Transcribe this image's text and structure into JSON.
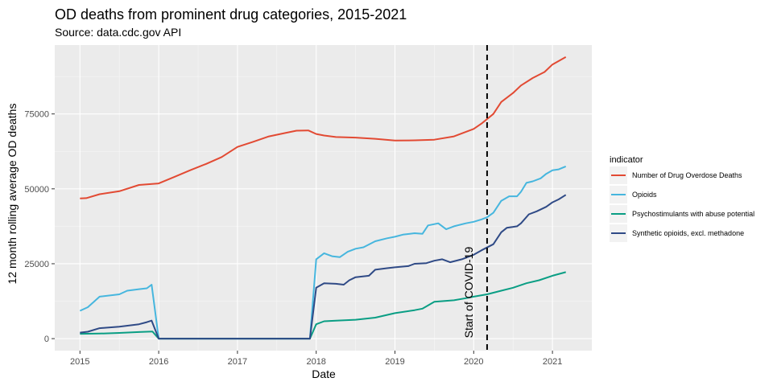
{
  "chart_data": {
    "type": "line",
    "title": "OD deaths from prominent drug categories, 2015-2021",
    "subtitle": "Source: data.cdc.gov API",
    "xlabel": "Date",
    "ylabel": "12 month rolling average OD deaths",
    "xlim": [
      2014.68,
      2021.5
    ],
    "ylim": [
      -4000,
      98000
    ],
    "x_ticks": [
      2015,
      2016,
      2017,
      2018,
      2019,
      2020,
      2021
    ],
    "x_tick_labels": [
      "2015",
      "2016",
      "2017",
      "2018",
      "2019",
      "2020",
      "2021"
    ],
    "y_ticks": [
      0,
      25000,
      50000,
      75000
    ],
    "y_tick_labels": [
      "0",
      "25000",
      "50000",
      "75000"
    ],
    "grid": true,
    "legend_title": "indicator",
    "legend_position": "right",
    "annotation": {
      "text": "Start of COVID-19",
      "x": 2020.17
    },
    "series": [
      {
        "name": "Number of Drug Overdose Deaths",
        "color": "#E24A33",
        "points": [
          [
            2015.0,
            46800
          ],
          [
            2015.08,
            46900
          ],
          [
            2015.25,
            48200
          ],
          [
            2015.5,
            49200
          ],
          [
            2015.75,
            51300
          ],
          [
            2016.0,
            51800
          ],
          [
            2016.2,
            54000
          ],
          [
            2016.4,
            56200
          ],
          [
            2016.6,
            58300
          ],
          [
            2016.8,
            60600
          ],
          [
            2017.0,
            64000
          ],
          [
            2017.2,
            65700
          ],
          [
            2017.4,
            67500
          ],
          [
            2017.6,
            68600
          ],
          [
            2017.75,
            69400
          ],
          [
            2017.9,
            69500
          ],
          [
            2018.0,
            68300
          ],
          [
            2018.1,
            67800
          ],
          [
            2018.25,
            67300
          ],
          [
            2018.5,
            67100
          ],
          [
            2018.75,
            66700
          ],
          [
            2019.0,
            66100
          ],
          [
            2019.25,
            66200
          ],
          [
            2019.5,
            66400
          ],
          [
            2019.75,
            67500
          ],
          [
            2020.0,
            70000
          ],
          [
            2020.1,
            71800
          ],
          [
            2020.25,
            75000
          ],
          [
            2020.35,
            79000
          ],
          [
            2020.5,
            82000
          ],
          [
            2020.6,
            84500
          ],
          [
            2020.75,
            87000
          ],
          [
            2020.9,
            89000
          ],
          [
            2021.0,
            91500
          ],
          [
            2021.17,
            94000
          ]
        ]
      },
      {
        "name": "Opioids",
        "color": "#46B6DE",
        "points": [
          [
            2015.0,
            9300
          ],
          [
            2015.1,
            10500
          ],
          [
            2015.25,
            14000
          ],
          [
            2015.5,
            14800
          ],
          [
            2015.6,
            16000
          ],
          [
            2015.75,
            16500
          ],
          [
            2015.85,
            16800
          ],
          [
            2015.91,
            18000
          ],
          [
            2016.0,
            0
          ],
          [
            2017.92,
            0
          ],
          [
            2018.0,
            26500
          ],
          [
            2018.1,
            28500
          ],
          [
            2018.2,
            27500
          ],
          [
            2018.3,
            27200
          ],
          [
            2018.4,
            29000
          ],
          [
            2018.5,
            30000
          ],
          [
            2018.6,
            30500
          ],
          [
            2018.75,
            32500
          ],
          [
            2018.9,
            33500
          ],
          [
            2019.0,
            34000
          ],
          [
            2019.1,
            34700
          ],
          [
            2019.25,
            35200
          ],
          [
            2019.35,
            35000
          ],
          [
            2019.42,
            37800
          ],
          [
            2019.55,
            38500
          ],
          [
            2019.65,
            36500
          ],
          [
            2019.75,
            37500
          ],
          [
            2019.9,
            38500
          ],
          [
            2020.0,
            39000
          ],
          [
            2020.1,
            39800
          ],
          [
            2020.17,
            40500
          ],
          [
            2020.25,
            42000
          ],
          [
            2020.35,
            46000
          ],
          [
            2020.45,
            47500
          ],
          [
            2020.55,
            47500
          ],
          [
            2020.6,
            49000
          ],
          [
            2020.67,
            52000
          ],
          [
            2020.75,
            52500
          ],
          [
            2020.85,
            53500
          ],
          [
            2020.92,
            55000
          ],
          [
            2021.0,
            56200
          ],
          [
            2021.08,
            56500
          ],
          [
            2021.17,
            57500
          ]
        ]
      },
      {
        "name": "Psychostimulants with abuse potential",
        "color": "#0A9E84",
        "points": [
          [
            2015.0,
            1600
          ],
          [
            2015.25,
            1700
          ],
          [
            2015.5,
            1900
          ],
          [
            2015.75,
            2200
          ],
          [
            2015.92,
            2400
          ],
          [
            2016.0,
            0
          ],
          [
            2017.92,
            0
          ],
          [
            2018.0,
            4800
          ],
          [
            2018.1,
            5800
          ],
          [
            2018.25,
            6000
          ],
          [
            2018.5,
            6300
          ],
          [
            2018.75,
            7000
          ],
          [
            2019.0,
            8500
          ],
          [
            2019.25,
            9500
          ],
          [
            2019.35,
            10000
          ],
          [
            2019.5,
            12300
          ],
          [
            2019.75,
            12800
          ],
          [
            2019.9,
            13500
          ],
          [
            2020.0,
            14000
          ],
          [
            2020.17,
            14800
          ],
          [
            2020.35,
            16000
          ],
          [
            2020.5,
            17000
          ],
          [
            2020.67,
            18500
          ],
          [
            2020.83,
            19500
          ],
          [
            2021.0,
            21000
          ],
          [
            2021.17,
            22200
          ]
        ]
      },
      {
        "name": "Synthetic opioids, excl. methadone",
        "color": "#2F4A86",
        "points": [
          [
            2015.0,
            2000
          ],
          [
            2015.1,
            2300
          ],
          [
            2015.25,
            3500
          ],
          [
            2015.5,
            4000
          ],
          [
            2015.75,
            4800
          ],
          [
            2015.85,
            5500
          ],
          [
            2015.91,
            6000
          ],
          [
            2016.0,
            0
          ],
          [
            2017.92,
            0
          ],
          [
            2018.0,
            17000
          ],
          [
            2018.1,
            18500
          ],
          [
            2018.25,
            18300
          ],
          [
            2018.35,
            18000
          ],
          [
            2018.42,
            19500
          ],
          [
            2018.5,
            20500
          ],
          [
            2018.67,
            21000
          ],
          [
            2018.75,
            23000
          ],
          [
            2018.9,
            23500
          ],
          [
            2019.0,
            23800
          ],
          [
            2019.17,
            24200
          ],
          [
            2019.25,
            25000
          ],
          [
            2019.4,
            25200
          ],
          [
            2019.5,
            26000
          ],
          [
            2019.6,
            26500
          ],
          [
            2019.7,
            25500
          ],
          [
            2019.85,
            26500
          ],
          [
            2020.0,
            28000
          ],
          [
            2020.1,
            29500
          ],
          [
            2020.25,
            31500
          ],
          [
            2020.35,
            35500
          ],
          [
            2020.42,
            37000
          ],
          [
            2020.55,
            37500
          ],
          [
            2020.6,
            38500
          ],
          [
            2020.7,
            41500
          ],
          [
            2020.8,
            42500
          ],
          [
            2020.92,
            44000
          ],
          [
            2021.0,
            45500
          ],
          [
            2021.08,
            46500
          ],
          [
            2021.17,
            48000
          ]
        ]
      }
    ]
  }
}
